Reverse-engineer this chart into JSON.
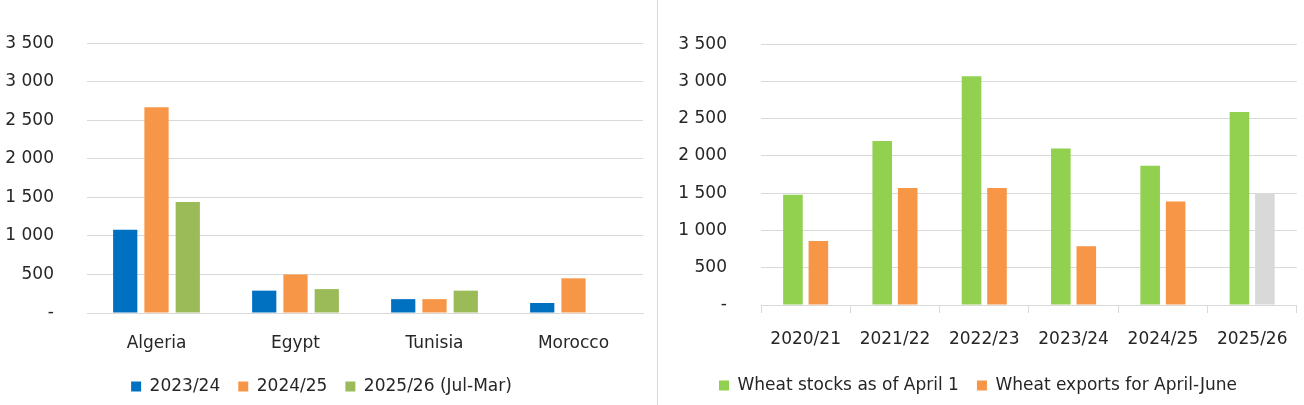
{
  "chart_data": [
    {
      "type": "bar",
      "categories": [
        "Algeria",
        "Egypt",
        "Tunisia",
        "Morocco"
      ],
      "series": [
        {
          "name": "2023/24",
          "color": "#0070c0",
          "values": [
            1080,
            290,
            180,
            130
          ]
        },
        {
          "name": "2024/25",
          "color": "#f79646",
          "values": [
            2670,
            500,
            180,
            450
          ]
        },
        {
          "name": "2025/26 (Jul-Mar)",
          "color": "#9bbb59",
          "values": [
            1440,
            310,
            290,
            null
          ]
        }
      ],
      "ylim": [
        0,
        3500
      ],
      "yticks": [
        {
          "value": 0,
          "label": "-"
        },
        500,
        {
          "value": 1000,
          "label": "1 000"
        },
        {
          "value": 1500,
          "label": "1 500"
        },
        {
          "value": 2000,
          "label": "2 000"
        },
        {
          "value": 2500,
          "label": "2 500"
        },
        {
          "value": 3000,
          "label": "3 000"
        },
        {
          "value": 3500,
          "label": "3 500"
        }
      ],
      "grid": "y",
      "legend": "bottom"
    },
    {
      "type": "bar",
      "categories": [
        "2020/21",
        "2021/22",
        "2022/23",
        "2023/24",
        "2024/25",
        "2025/26"
      ],
      "series": [
        {
          "name": "Wheat stocks as of April 1",
          "color": "#92d050",
          "values": [
            1480,
            2200,
            3070,
            2100,
            1870,
            2590
          ]
        },
        {
          "name": "Wheat exports for April-June",
          "color": "#f79646",
          "colors": [
            "#f79646",
            "#f79646",
            "#f79646",
            "#f79646",
            "#f79646",
            "#d9d9d9"
          ],
          "values": [
            860,
            1570,
            1570,
            790,
            1390,
            1500
          ]
        }
      ],
      "ylim": [
        0,
        3500
      ],
      "yticks": [
        {
          "value": 0,
          "label": "-"
        },
        500,
        {
          "value": 1000,
          "label": "1 000"
        },
        {
          "value": 1500,
          "label": "1 500"
        },
        {
          "value": 2000,
          "label": "2 000"
        },
        {
          "value": 2500,
          "label": "2 500"
        },
        {
          "value": 3000,
          "label": "3 000"
        },
        {
          "value": 3500,
          "label": "3 500"
        }
      ],
      "grid": "y",
      "legend": "bottom"
    }
  ]
}
